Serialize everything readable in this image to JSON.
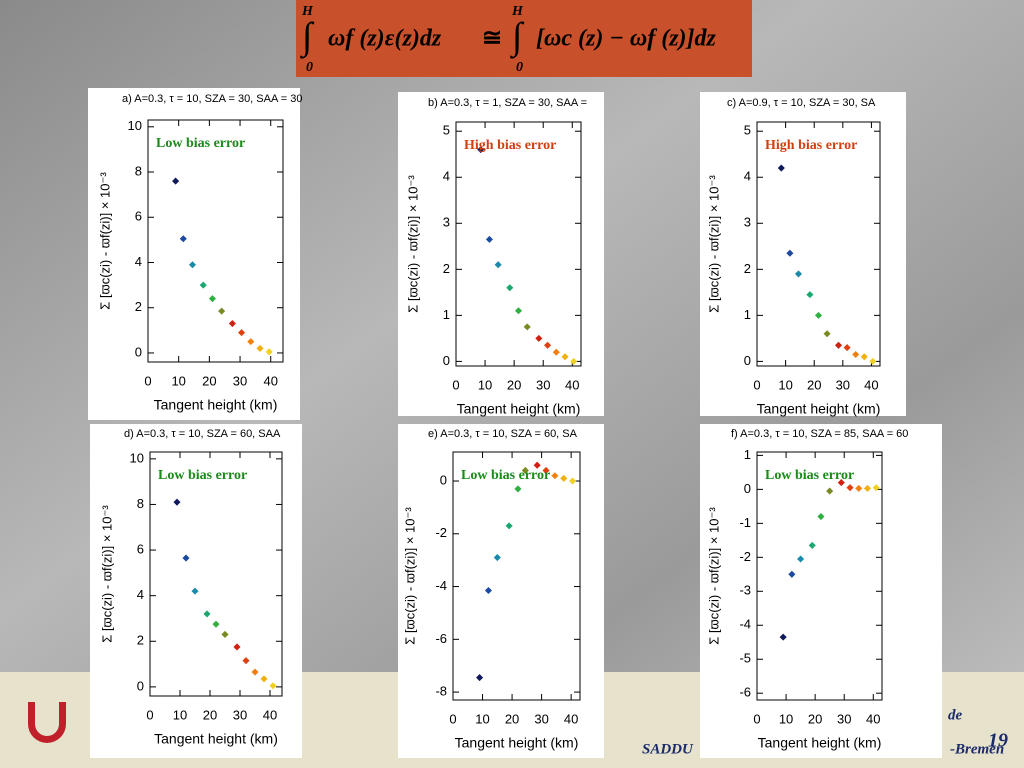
{
  "formula": {
    "integral": "∫",
    "upper": "H",
    "lower": "0",
    "lhs": "ωf (z)ε(z)dz",
    "approx": "≅",
    "rhs": "[ωc (z) − ωf (z)]dz"
  },
  "footer": {
    "page_number": "19",
    "left_text": "SADDU",
    "right_text": "-Bremen",
    "top_text": "de"
  },
  "chart_data": [
    {
      "type": "scatter",
      "title": "a) A=0.3, τ = 10, SZA = 30, SAA = 30",
      "annotation": "Low bias error",
      "annotation_color": "#1a8a1a",
      "xlabel": "Tangent height (km)",
      "ylabel": "Σ [ϖc(zi) - ϖf(zi)] × 10⁻³",
      "x": [
        9,
        11.5,
        14.5,
        18,
        21,
        24,
        27.5,
        30.5,
        33.5,
        36.5,
        39.5
      ],
      "values": [
        7.6,
        5.05,
        3.9,
        3.0,
        2.4,
        1.85,
        1.3,
        0.9,
        0.5,
        0.2,
        0.05
      ],
      "colors": [
        "#101a5a",
        "#1c4aa0",
        "#1a8aa8",
        "#1aa870",
        "#30b040",
        "#7a8a20",
        "#d02010",
        "#e04010",
        "#f08010",
        "#f0b010",
        "#f0d020"
      ],
      "xlim": [
        0,
        44
      ],
      "xticks": [
        0,
        10,
        20,
        30,
        40
      ],
      "ylim": [
        -0.4,
        10.3
      ],
      "yticks": [
        0,
        2,
        4,
        6,
        8,
        10
      ]
    },
    {
      "type": "scatter",
      "title": "b) A=0.3, τ = 1, SZA = 30, SAA =",
      "annotation": "High bias error",
      "annotation_color": "#d04010",
      "xlabel": "Tangent height (km)",
      "ylabel": "Σ [ϖc(zi) - ϖf(zi)] × 10⁻³",
      "x": [
        8.5,
        11.5,
        14.5,
        18.5,
        21.5,
        24.5,
        28.5,
        31.5,
        34.5,
        37.5,
        40.5
      ],
      "values": [
        4.6,
        2.65,
        2.1,
        1.6,
        1.1,
        0.75,
        0.5,
        0.35,
        0.2,
        0.1,
        0
      ],
      "colors": [
        "#101a5a",
        "#1c4aa0",
        "#1a8aa8",
        "#1aa870",
        "#30b040",
        "#7a8a20",
        "#d02010",
        "#e04010",
        "#f08010",
        "#f0b010",
        "#f0d020"
      ],
      "xlim": [
        0,
        43
      ],
      "xticks": [
        0,
        10,
        20,
        30,
        40
      ],
      "ylim": [
        -0.1,
        5.2
      ],
      "yticks": [
        0,
        1,
        2,
        3,
        4,
        5
      ]
    },
    {
      "type": "scatter",
      "title": "c) A=0.9, τ = 10, SZA = 30, SA",
      "annotation": "High bias error",
      "annotation_color": "#d04010",
      "xlabel": "Tangent height (km)",
      "ylabel": "Σ [ϖc(zi) - ϖf(zi)] × 10⁻³",
      "x": [
        8.5,
        11.5,
        14.5,
        18.5,
        21.5,
        24.5,
        28.5,
        31.5,
        34.5,
        37.5,
        40.5
      ],
      "values": [
        4.2,
        2.35,
        1.9,
        1.45,
        1.0,
        0.6,
        0.35,
        0.3,
        0.15,
        0.1,
        0
      ],
      "colors": [
        "#101a5a",
        "#1c4aa0",
        "#1a8aa8",
        "#1aa870",
        "#30b040",
        "#7a8a20",
        "#d02010",
        "#e04010",
        "#f08010",
        "#f0b010",
        "#f0d020"
      ],
      "xlim": [
        0,
        43
      ],
      "xticks": [
        0,
        10,
        20,
        30,
        40
      ],
      "ylim": [
        -0.1,
        5.2
      ],
      "yticks": [
        0,
        1,
        2,
        3,
        4,
        5
      ]
    },
    {
      "type": "scatter",
      "title": "d) A=0.3, τ = 10, SZA = 60, SAA",
      "annotation": "Low bias error",
      "annotation_color": "#1a8a1a",
      "xlabel": "Tangent height (km)",
      "ylabel": "Σ [ϖc(zi) - ϖf(zi)] × 10⁻³",
      "x": [
        9,
        12,
        15,
        19,
        22,
        25,
        29,
        32,
        35,
        38,
        41
      ],
      "values": [
        8.1,
        5.65,
        4.2,
        3.2,
        2.75,
        2.3,
        1.75,
        1.15,
        0.65,
        0.35,
        0.05
      ],
      "colors": [
        "#101a5a",
        "#1c4aa0",
        "#1a8aa8",
        "#1aa870",
        "#30b040",
        "#7a8a20",
        "#d02010",
        "#e04010",
        "#f08010",
        "#f0b010",
        "#f0d020"
      ],
      "xlim": [
        0,
        44
      ],
      "xticks": [
        0,
        10,
        20,
        30,
        40
      ],
      "ylim": [
        -0.4,
        10.3
      ],
      "yticks": [
        0,
        2,
        4,
        6,
        8,
        10
      ]
    },
    {
      "type": "scatter",
      "title": "e) A=0.3, τ = 10, SZA = 60, SA",
      "annotation": "Low bias error",
      "annotation_color": "#1a8a1a",
      "xlabel": "Tangent height (km)",
      "ylabel": "Σ [ϖc(zi) - ϖf(zi)] × 10⁻³",
      "x": [
        9,
        12,
        15,
        19,
        22,
        24.5,
        28.5,
        31.5,
        34.5,
        37.5,
        40.5
      ],
      "values": [
        -7.45,
        -4.15,
        -2.9,
        -1.7,
        -0.3,
        0.4,
        0.6,
        0.4,
        0.2,
        0.1,
        0
      ],
      "colors": [
        "#101a5a",
        "#1c4aa0",
        "#1a8aa8",
        "#1aa870",
        "#30b040",
        "#7a8a20",
        "#d02010",
        "#e04010",
        "#f08010",
        "#f0b010",
        "#f0d020"
      ],
      "xlim": [
        0,
        43
      ],
      "xticks": [
        0,
        10,
        20,
        30,
        40
      ],
      "ylim": [
        -8.3,
        1.1
      ],
      "yticks": [
        -8,
        -6,
        -4,
        -2,
        0
      ]
    },
    {
      "type": "scatter",
      "title": "f) A=0.3, τ = 10, SZA = 85, SAA = 60",
      "annotation": "Low bias error",
      "annotation_color": "#1a8a1a",
      "xlabel": "Tangent height (km)",
      "ylabel": "Σ [ϖc(zi) - ϖf(zi)] × 10⁻³",
      "x": [
        9,
        12,
        15,
        19,
        22,
        25,
        29,
        32,
        35,
        38,
        41
      ],
      "values": [
        -4.35,
        -2.5,
        -2.05,
        -1.65,
        -0.8,
        -0.05,
        0.2,
        0.05,
        0.03,
        0.03,
        0.05
      ],
      "colors": [
        "#101a5a",
        "#1c4aa0",
        "#1a8aa8",
        "#1aa870",
        "#30b040",
        "#7a8a20",
        "#d02010",
        "#e04010",
        "#f08010",
        "#f0b010",
        "#f0d020"
      ],
      "xlim": [
        0,
        43
      ],
      "xticks": [
        0,
        10,
        20,
        30,
        40
      ],
      "ylim": [
        -6.2,
        1.1
      ],
      "yticks": [
        -6,
        -5,
        -4,
        -3,
        -2,
        -1,
        0,
        1
      ]
    }
  ]
}
